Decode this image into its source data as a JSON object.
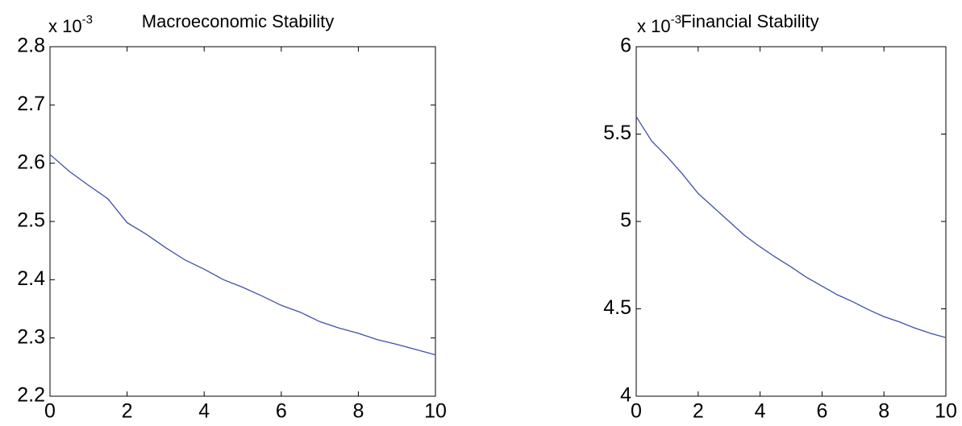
{
  "chart_data": [
    {
      "type": "line",
      "title": "Macroeconomic Stability",
      "y_multiplier": "x 10",
      "y_multiplier_exponent": "-3",
      "x": [
        0,
        0.5,
        1,
        1.5,
        2,
        2.5,
        3,
        3.5,
        4,
        4.5,
        5,
        5.5,
        6,
        6.5,
        7,
        7.5,
        8,
        8.5,
        9,
        9.5,
        10
      ],
      "values": [
        2.615,
        2.586,
        2.562,
        2.539,
        2.498,
        2.478,
        2.455,
        2.434,
        2.418,
        2.4,
        2.387,
        2.372,
        2.356,
        2.344,
        2.328,
        2.317,
        2.308,
        2.297,
        2.289,
        2.28,
        2.271
      ],
      "color": "#4050a8",
      "xlim": [
        0,
        10
      ],
      "ylim": [
        2.2,
        2.8
      ],
      "xticks": [
        0,
        2,
        4,
        6,
        8,
        10
      ],
      "yticks": [
        2.2,
        2.3,
        2.4,
        2.5,
        2.6,
        2.7,
        2.8
      ]
    },
    {
      "type": "line",
      "title": "Financial Stability",
      "y_multiplier": "x 10",
      "y_multiplier_exponent": "-3",
      "x": [
        0,
        0.5,
        1,
        1.5,
        2,
        2.5,
        3,
        3.5,
        4,
        4.5,
        5,
        5.5,
        6,
        6.5,
        7,
        7.5,
        8,
        8.5,
        9,
        9.5,
        10
      ],
      "values": [
        5.6,
        5.46,
        5.37,
        5.27,
        5.16,
        5.08,
        5.0,
        4.92,
        4.855,
        4.795,
        4.74,
        4.68,
        4.63,
        4.58,
        4.54,
        4.495,
        4.455,
        4.425,
        4.39,
        4.36,
        4.335
      ],
      "color": "#4050a8",
      "xlim": [
        0,
        10
      ],
      "ylim": [
        4,
        6
      ],
      "xticks": [
        0,
        2,
        4,
        6,
        8,
        10
      ],
      "yticks": [
        4,
        4.5,
        5,
        5.5,
        6
      ]
    }
  ]
}
